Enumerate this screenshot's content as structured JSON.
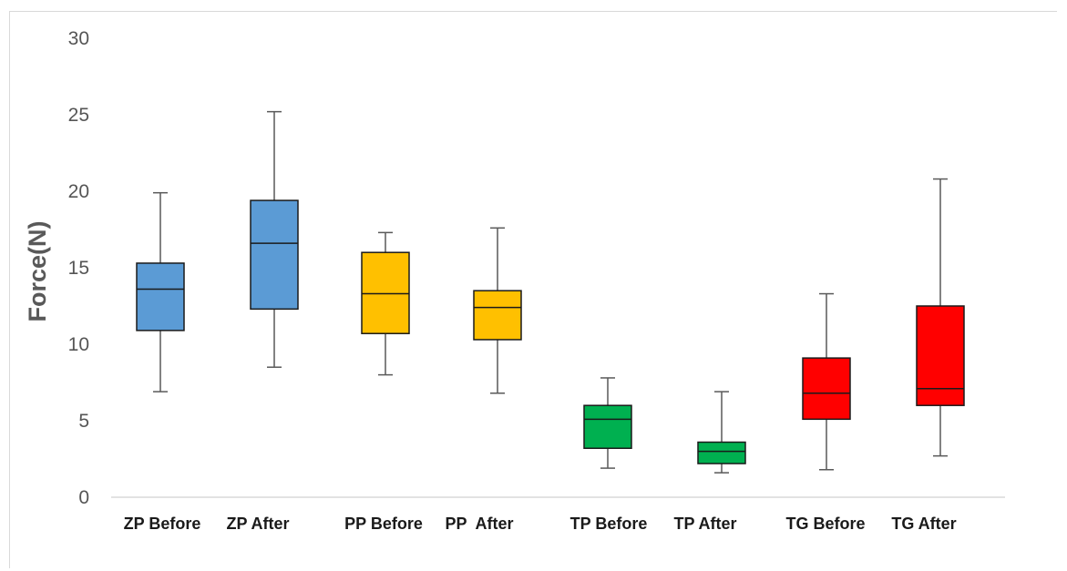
{
  "chart_data": {
    "type": "boxplot",
    "title": "",
    "xlabel": "",
    "ylabel": "Force(N)",
    "ylim": [
      0,
      30
    ],
    "yticks": [
      0,
      5,
      10,
      15,
      20,
      25,
      30
    ],
    "grid": false,
    "legend": "none",
    "categories": [
      "ZP Before",
      "ZP After",
      "PP Before",
      "PP  After",
      "TP Before",
      "TP After",
      "TG Before",
      "TG After"
    ],
    "boxes": [
      {
        "label": "ZP Before",
        "min": 6.9,
        "q1": 10.9,
        "median": 13.6,
        "q3": 15.3,
        "max": 19.9,
        "color": "#5b9bd5"
      },
      {
        "label": "ZP After",
        "min": 8.5,
        "q1": 12.3,
        "median": 16.6,
        "q3": 19.4,
        "max": 25.2,
        "color": "#5b9bd5"
      },
      {
        "label": "PP Before",
        "min": 8.0,
        "q1": 10.7,
        "median": 13.3,
        "q3": 16.0,
        "max": 17.3,
        "color": "#ffc000"
      },
      {
        "label": "PP  After",
        "min": 6.8,
        "q1": 10.3,
        "median": 12.4,
        "q3": 13.5,
        "max": 17.6,
        "color": "#ffc000"
      },
      {
        "label": "TP Before",
        "min": 1.9,
        "q1": 3.2,
        "median": 5.1,
        "q3": 6.0,
        "max": 7.8,
        "color": "#00b050"
      },
      {
        "label": "TP After",
        "min": 1.6,
        "q1": 2.2,
        "median": 3.0,
        "q3": 3.6,
        "max": 6.9,
        "color": "#00b050"
      },
      {
        "label": "TG Before",
        "min": 1.8,
        "q1": 5.1,
        "median": 6.8,
        "q3": 9.1,
        "max": 13.3,
        "color": "#ff0000"
      },
      {
        "label": "TG After",
        "min": 2.7,
        "q1": 6.0,
        "median": 7.1,
        "q3": 12.5,
        "max": 20.8,
        "color": "#ff0000"
      }
    ]
  }
}
